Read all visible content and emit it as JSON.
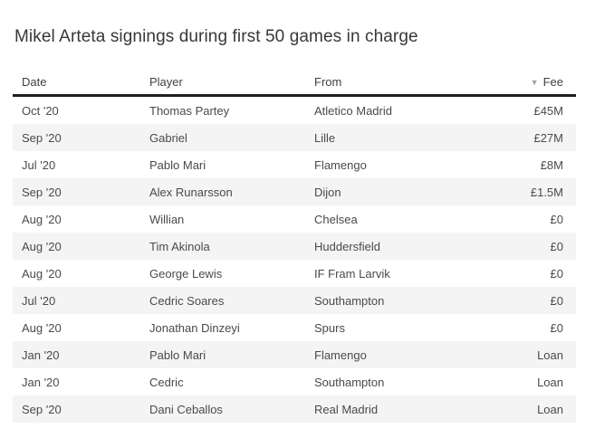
{
  "title": "Mikel Arteta signings during first 50 games in charge",
  "sort_icon": "▼",
  "colors": {
    "background": "#ffffff",
    "title_text": "#373737",
    "header_text": "#404040",
    "header_border": "#1f1f1f",
    "row_text": "#4a4a4a",
    "alt_row_bg": "#f4f4f4",
    "sort_icon": "#a3a3a3"
  },
  "chart_data": {
    "type": "table",
    "title": "Mikel Arteta signings during first 50 games in charge",
    "columns": [
      {
        "key": "date",
        "label": "Date",
        "align": "left"
      },
      {
        "key": "player",
        "label": "Player",
        "align": "left"
      },
      {
        "key": "from",
        "label": "From",
        "align": "left"
      },
      {
        "key": "fee",
        "label": "Fee",
        "align": "right",
        "sorted": "desc"
      }
    ],
    "rows": [
      {
        "date": "Oct '20",
        "player": "Thomas Partey",
        "from": "Atletico Madrid",
        "fee": "£45M"
      },
      {
        "date": "Sep '20",
        "player": "Gabriel",
        "from": "Lille",
        "fee": "£27M"
      },
      {
        "date": "Jul '20",
        "player": "Pablo Mari",
        "from": "Flamengo",
        "fee": "£8M"
      },
      {
        "date": "Sep '20",
        "player": "Alex Runarsson",
        "from": "Dijon",
        "fee": "£1.5M"
      },
      {
        "date": "Aug '20",
        "player": "Willian",
        "from": "Chelsea",
        "fee": "£0"
      },
      {
        "date": "Aug '20",
        "player": "Tim Akinola",
        "from": "Huddersfield",
        "fee": "£0"
      },
      {
        "date": "Aug '20",
        "player": "George Lewis",
        "from": "IF Fram Larvik",
        "fee": "£0"
      },
      {
        "date": "Jul '20",
        "player": "Cedric Soares",
        "from": "Southampton",
        "fee": "£0"
      },
      {
        "date": "Aug '20",
        "player": "Jonathan Dinzeyi",
        "from": "Spurs",
        "fee": "£0"
      },
      {
        "date": "Jan '20",
        "player": "Pablo Mari",
        "from": "Flamengo",
        "fee": "Loan"
      },
      {
        "date": "Jan '20",
        "player": "Cedric",
        "from": "Southampton",
        "fee": "Loan"
      },
      {
        "date": "Sep '20",
        "player": "Dani Ceballos",
        "from": "Real Madrid",
        "fee": "Loan"
      }
    ]
  }
}
